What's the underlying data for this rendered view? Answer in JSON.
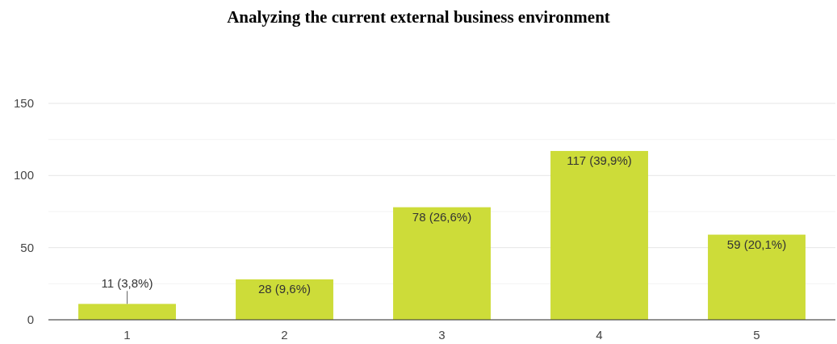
{
  "chart_data": {
    "type": "bar",
    "title": "Analyzing the current external business environment",
    "categories": [
      "1",
      "2",
      "3",
      "4",
      "5"
    ],
    "values": [
      11,
      28,
      78,
      117,
      59
    ],
    "value_labels": [
      "11 (3,8%)",
      "28 (9,6%)",
      "78 (26,6%)",
      "117 (39,9%)",
      "59 (20,1%)"
    ],
    "color": "#cddc39",
    "ylim": [
      0,
      150
    ],
    "yticks": [
      0,
      {
        "value": 25,
        "label": null
      },
      50,
      {
        "value": 75,
        "label": null
      },
      100,
      {
        "value": 125,
        "label": null
      },
      150
    ],
    "grid": "y"
  }
}
